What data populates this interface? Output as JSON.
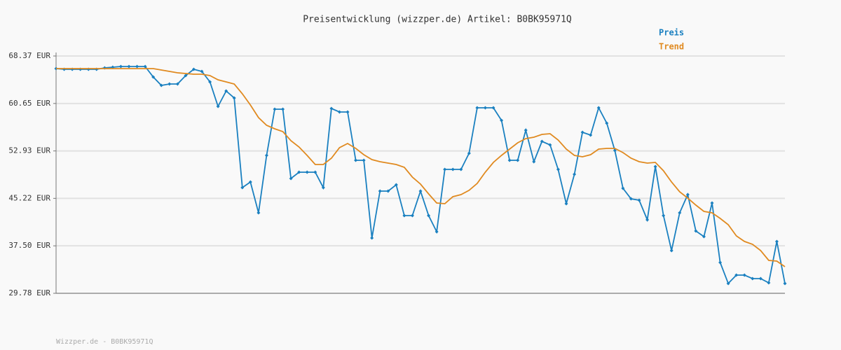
{
  "chart_data": {
    "type": "line",
    "title": "Preisentwicklung (wizzper.de) Artikel: B0BK95971Q",
    "footer": "Wizzper.de - B0BK95971Q",
    "ylim": [
      29.78,
      68.37
    ],
    "yticks": [
      {
        "value": 29.78,
        "label": "29.78 EUR"
      },
      {
        "value": 37.5,
        "label": "37.50 EUR"
      },
      {
        "value": 45.22,
        "label": "45.22 EUR"
      },
      {
        "value": 52.93,
        "label": "52.93 EUR"
      },
      {
        "value": 60.65,
        "label": "60.65 EUR"
      },
      {
        "value": 68.37,
        "label": "68.37 EUR"
      }
    ],
    "grid": true,
    "legend": "top-right",
    "series": [
      {
        "name": "Preis",
        "color": "#1a80c0",
        "markers": true,
        "values": [
          66.32,
          66.21,
          66.21,
          66.21,
          66.21,
          66.21,
          66.43,
          66.55,
          66.66,
          66.66,
          66.66,
          66.66,
          64.95,
          63.59,
          63.82,
          63.82,
          65.18,
          66.21,
          65.87,
          64.16,
          60.17,
          62.68,
          61.54,
          46.97,
          47.88,
          42.87,
          52.21,
          59.72,
          59.72,
          48.45,
          49.47,
          49.47,
          49.47,
          46.97,
          59.83,
          59.26,
          59.26,
          51.41,
          51.41,
          38.77,
          46.4,
          46.4,
          47.43,
          42.42,
          42.42,
          46.4,
          42.42,
          39.8,
          49.93,
          49.93,
          49.93,
          52.55,
          59.95,
          59.95,
          59.95,
          57.9,
          51.41,
          51.41,
          56.3,
          51.18,
          54.48,
          53.91,
          49.93,
          44.35,
          49.13,
          55.96,
          55.51,
          59.95,
          57.44,
          53.0,
          46.86,
          45.15,
          44.92,
          41.73,
          50.39,
          42.42,
          36.73,
          42.87,
          45.83,
          39.91,
          39.0,
          44.47,
          34.79,
          31.38,
          32.74,
          32.74,
          32.17,
          32.17,
          31.49,
          38.21,
          31.38
        ]
      },
      {
        "name": "Trend",
        "color": "#e08a20",
        "markers": false,
        "values": [
          66.32,
          66.32,
          66.32,
          66.32,
          66.32,
          66.32,
          66.32,
          66.32,
          66.32,
          66.32,
          66.32,
          66.32,
          66.32,
          66.09,
          65.87,
          65.64,
          65.52,
          65.41,
          65.41,
          65.18,
          64.5,
          64.16,
          63.82,
          62.22,
          60.4,
          58.35,
          57.1,
          56.53,
          56.08,
          54.6,
          53.57,
          52.21,
          50.73,
          50.73,
          51.75,
          53.46,
          54.14,
          53.34,
          52.32,
          51.52,
          51.18,
          50.95,
          50.73,
          50.27,
          48.68,
          47.54,
          45.95,
          44.47,
          44.35,
          45.49,
          45.83,
          46.52,
          47.65,
          49.47,
          51.07,
          52.21,
          53.23,
          54.26,
          54.94,
          55.17,
          55.62,
          55.74,
          54.71,
          53.23,
          52.21,
          51.98,
          52.32,
          53.23,
          53.34,
          53.34,
          52.66,
          51.75,
          51.18,
          50.95,
          51.07,
          49.7,
          47.88,
          46.29,
          45.26,
          44.12,
          43.1,
          42.87,
          41.96,
          40.94,
          39.12,
          38.21,
          37.75,
          36.73,
          35.13,
          35.02,
          34.11
        ]
      }
    ]
  }
}
